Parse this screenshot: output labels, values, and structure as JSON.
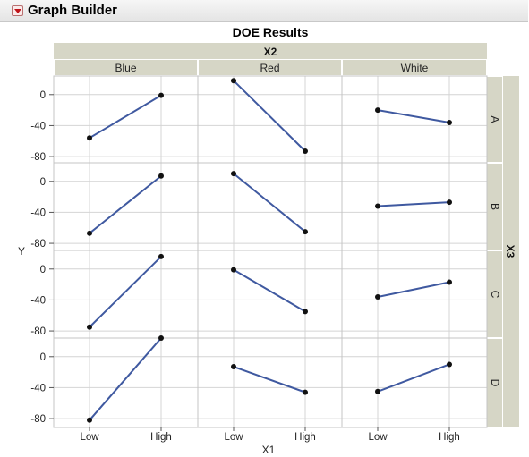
{
  "header": {
    "title": "Graph Builder",
    "disclosure_icon": "red-triangle-down-icon"
  },
  "chart_data": {
    "type": "line",
    "title": "DOE Results",
    "xlabel": "X1",
    "ylabel": "Y",
    "column_var": "X2",
    "row_var": "X3",
    "columns": [
      "Blue",
      "Red",
      "White"
    ],
    "rows": [
      "A",
      "B",
      "C",
      "D"
    ],
    "x_categories": [
      "Low",
      "High"
    ],
    "y_ticks": [
      0,
      -40,
      -80
    ],
    "y_tick_labels": [
      "0",
      "-40",
      "-80"
    ],
    "ylim": [
      -88,
      24
    ],
    "grid": true,
    "line_color": "#3f59a0",
    "cells": [
      [
        {
          "values": [
            -56,
            -1
          ]
        },
        {
          "values": [
            18,
            -73
          ]
        },
        {
          "values": [
            -20,
            -36
          ]
        }
      ],
      [
        {
          "values": [
            -67,
            7
          ]
        },
        {
          "values": [
            10,
            -65
          ]
        },
        {
          "values": [
            -32,
            -27
          ]
        }
      ],
      [
        {
          "values": [
            -75,
            16
          ]
        },
        {
          "values": [
            -1,
            -55
          ]
        },
        {
          "values": [
            -36,
            -17
          ]
        }
      ],
      [
        {
          "values": [
            -82,
            24
          ]
        },
        {
          "values": [
            -13,
            -46
          ]
        },
        {
          "values": [
            -45,
            -10
          ]
        }
      ]
    ]
  }
}
